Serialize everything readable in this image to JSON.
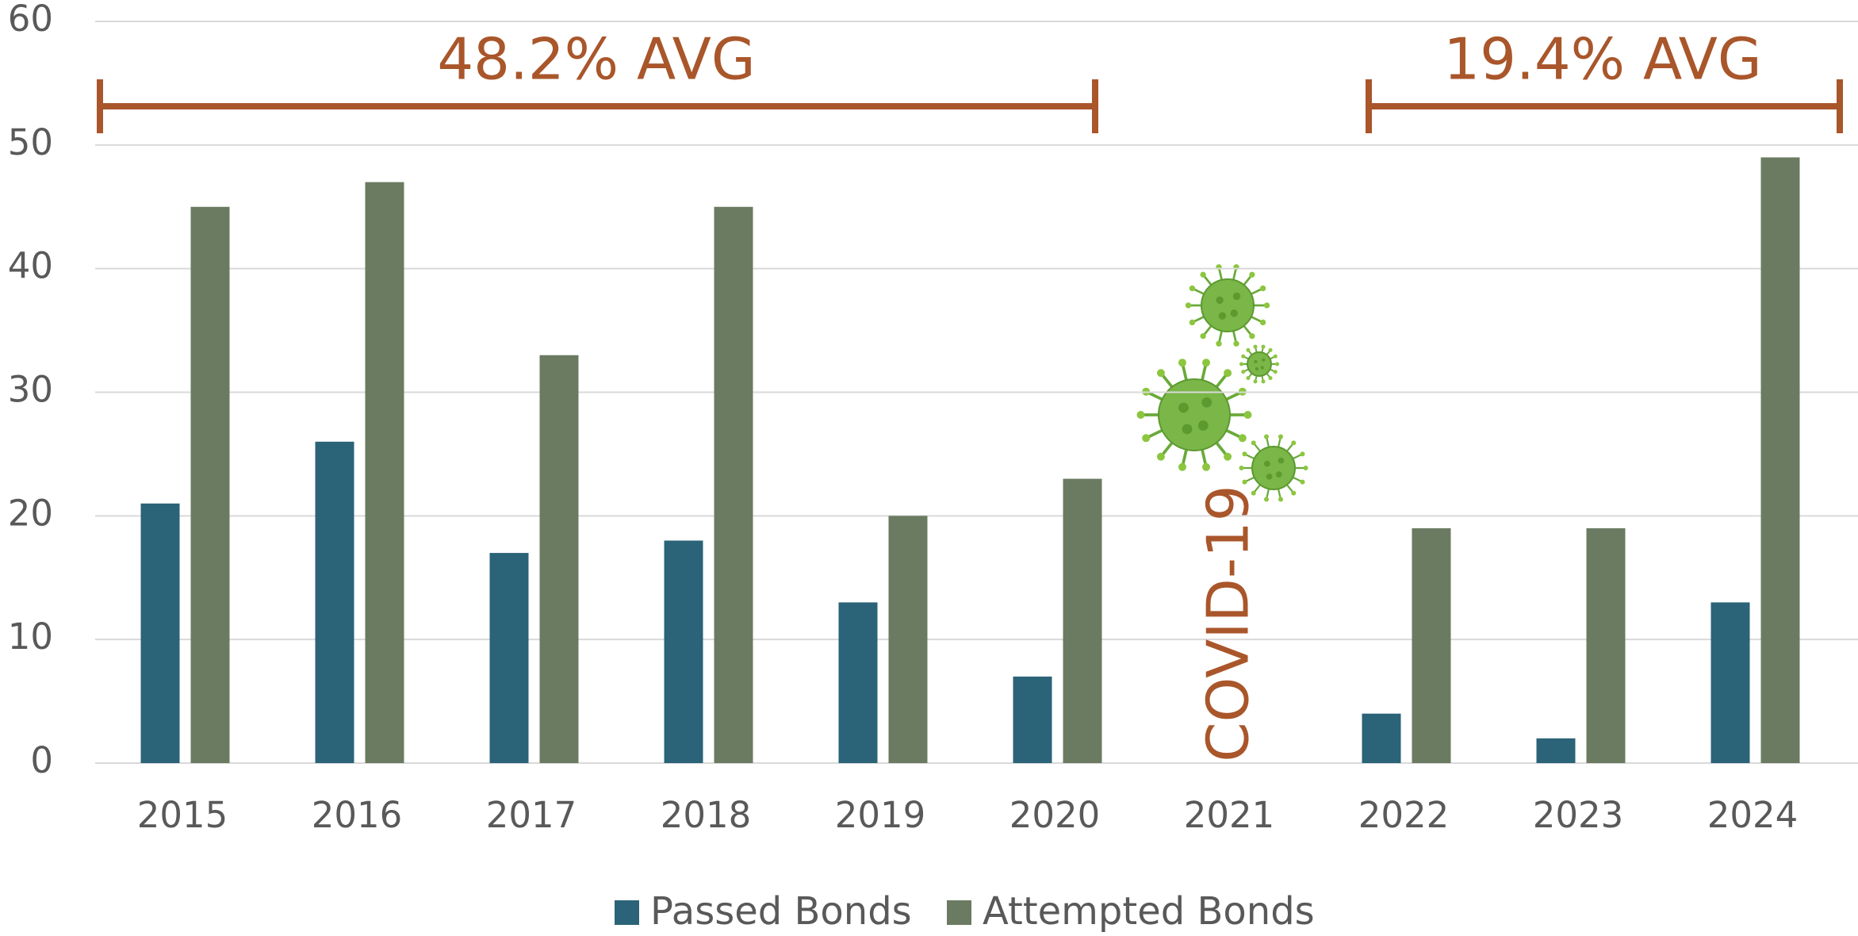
{
  "chart_data": {
    "type": "bar",
    "categories": [
      "2015",
      "2016",
      "2017",
      "2018",
      "2019",
      "2020",
      "2021",
      "2022",
      "2023",
      "2024"
    ],
    "series": [
      {
        "name": "Passed Bonds",
        "color": "#2b6378",
        "values": [
          21,
          26,
          17,
          18,
          13,
          7,
          null,
          4,
          2,
          13
        ]
      },
      {
        "name": "Attempted Bonds",
        "color": "#6b7b62",
        "values": [
          45,
          47,
          33,
          45,
          20,
          23,
          null,
          19,
          19,
          49
        ]
      }
    ],
    "ylim": [
      0,
      60
    ],
    "yticks": [
      0,
      10,
      20,
      30,
      40,
      50,
      60
    ],
    "grid": true,
    "legend": "bottom",
    "annotations": [
      "48.2% AVG",
      "19.4% AVG",
      "COVID-19"
    ],
    "annotation_color": "#a9562b"
  }
}
